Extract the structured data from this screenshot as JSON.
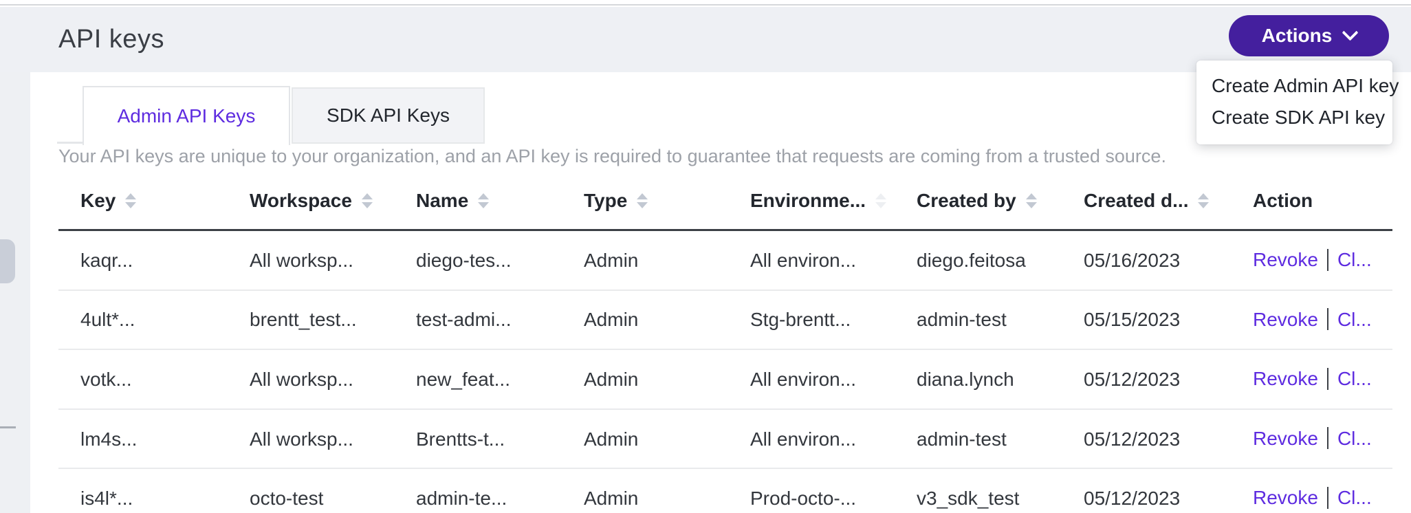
{
  "page": {
    "title": "API keys"
  },
  "actions": {
    "button_label": "Actions",
    "menu_items": [
      {
        "label": "Create Admin API key"
      },
      {
        "label": "Create SDK API key"
      }
    ]
  },
  "tabs": [
    {
      "label": "Admin API Keys",
      "active": true
    },
    {
      "label": "SDK API Keys",
      "active": false
    }
  ],
  "description": "Your API keys are unique to your organization, and an API key is required to guarantee that requests are coming from a trusted source.",
  "table": {
    "columns": [
      {
        "key": "key",
        "label": "Key",
        "sortable": true
      },
      {
        "key": "workspace",
        "label": "Workspace",
        "sortable": true
      },
      {
        "key": "name",
        "label": "Name",
        "sortable": true
      },
      {
        "key": "type",
        "label": "Type",
        "sortable": true
      },
      {
        "key": "environment",
        "label": "Environme...",
        "sortable": true,
        "sort_faint": true
      },
      {
        "key": "created_by",
        "label": "Created by",
        "sortable": true
      },
      {
        "key": "created_date",
        "label": "Created d...",
        "sortable": true
      },
      {
        "key": "action",
        "label": "Action",
        "sortable": false
      }
    ],
    "rows": [
      {
        "key": "kaqr...",
        "workspace": "All worksp...",
        "name": "diego-tes...",
        "type": "Admin",
        "environment": "All environ...",
        "created_by": "diego.feitosa",
        "created_date": "05/16/2023"
      },
      {
        "key": "4ult*...",
        "workspace": "brentt_test...",
        "name": "test-admi...",
        "type": "Admin",
        "environment": "Stg-brentt...",
        "created_by": "admin-test",
        "created_date": "05/15/2023"
      },
      {
        "key": "votk...",
        "workspace": "All worksp...",
        "name": "new_feat...",
        "type": "Admin",
        "environment": "All environ...",
        "created_by": "diana.lynch",
        "created_date": "05/12/2023"
      },
      {
        "key": "lm4s...",
        "workspace": "All worksp...",
        "name": "Brentts-t...",
        "type": "Admin",
        "environment": "All environ...",
        "created_by": "admin-test",
        "created_date": "05/12/2023"
      },
      {
        "key": "is4l*...",
        "workspace": "octo-test",
        "name": "admin-te...",
        "type": "Admin",
        "environment": "Prod-octo-...",
        "created_by": "v3_sdk_test",
        "created_date": "05/12/2023"
      }
    ],
    "row_actions": {
      "revoke_label": "Revoke",
      "secondary_label": "Cl..."
    }
  },
  "icons": {
    "chevron-down-icon": "⌄",
    "sort-icon": "▲▼"
  },
  "colors": {
    "accent_link": "#5e2ce0",
    "actions_button": "#441f9e",
    "header_band": "#eef0f4",
    "table_header_text": "#23272e",
    "muted_text": "#9da1a8"
  }
}
